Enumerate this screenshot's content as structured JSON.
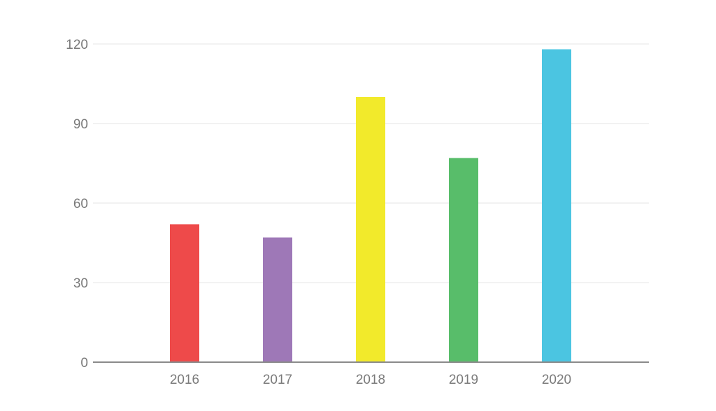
{
  "chart_data": {
    "type": "bar",
    "title": "",
    "xlabel": "",
    "ylabel": "",
    "categories": [
      "2016",
      "2017",
      "2018",
      "2019",
      "2020"
    ],
    "values": [
      52,
      47,
      100,
      77,
      118
    ],
    "colors": [
      "#ee4a4a",
      "#9e78b7",
      "#f2ea2b",
      "#58bd6a",
      "#4bc5e1"
    ],
    "ylim": [
      0,
      120
    ],
    "yticks": [
      0,
      30,
      60,
      90,
      120
    ],
    "ytick_labels": [
      "0",
      "30",
      "60",
      "90",
      "120"
    ],
    "grid": true,
    "legend": "none"
  }
}
